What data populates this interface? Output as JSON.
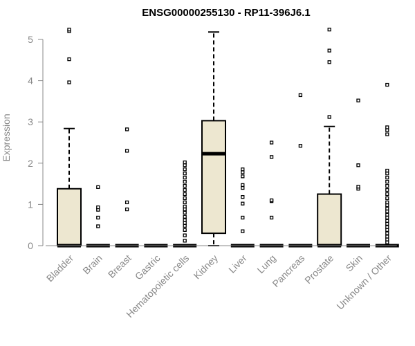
{
  "chart_data": {
    "type": "box",
    "title": "ENSG00000255130 - RP11-396J6.1",
    "xlabel": "",
    "ylabel": "Expression",
    "ylim": [
      0,
      5.3
    ],
    "yticks": [
      0,
      1,
      2,
      3,
      4,
      5
    ],
    "grid": false,
    "box_fill": "#EDE7D0",
    "categories": [
      "Bladder",
      "Brain",
      "Breast",
      "Gastric",
      "Hematopoietic cells",
      "Kidney",
      "Liver",
      "Lung",
      "Pancreas",
      "Prostate",
      "Skin",
      "Unknown / Other"
    ],
    "boxes": [
      {
        "category": "Bladder",
        "q1": 0,
        "median": 0,
        "q3": 1.38,
        "whisker_low": 0,
        "whisker_high": 2.84,
        "outliers": [
          3.96,
          4.52,
          5.2,
          5.24
        ]
      },
      {
        "category": "Brain",
        "q1": 0,
        "median": 0,
        "q3": 0,
        "whisker_low": 0,
        "whisker_high": 0,
        "outliers": [
          0.47,
          0.68,
          0.87,
          0.93,
          1.42
        ]
      },
      {
        "category": "Breast",
        "q1": 0,
        "median": 0,
        "q3": 0,
        "whisker_low": 0,
        "whisker_high": 0,
        "outliers": [
          0.88,
          1.05,
          2.3,
          2.82
        ]
      },
      {
        "category": "Gastric",
        "q1": 0,
        "median": 0,
        "q3": 0,
        "whisker_low": 0,
        "whisker_high": 0,
        "outliers": []
      },
      {
        "category": "Hematopoietic cells",
        "q1": 0,
        "median": 0,
        "q3": 0,
        "whisker_low": 0,
        "whisker_high": 0,
        "outliers": [
          0.12,
          0.25,
          0.38,
          0.48,
          0.55,
          0.62,
          0.7,
          0.8,
          0.88,
          0.95,
          1.05,
          1.15,
          1.25,
          1.35,
          1.45,
          1.55,
          1.65,
          1.75,
          1.85,
          1.95,
          2.02
        ]
      },
      {
        "category": "Kidney",
        "q1": 0.3,
        "median": 2.23,
        "q3": 3.03,
        "whisker_low": 0,
        "whisker_high": 5.18,
        "outliers": []
      },
      {
        "category": "Liver",
        "q1": 0,
        "median": 0,
        "q3": 0,
        "whisker_low": 0,
        "whisker_high": 0,
        "outliers": [
          0.35,
          0.68,
          1.02,
          1.18,
          1.4,
          1.47,
          1.68,
          1.78,
          1.85
        ]
      },
      {
        "category": "Lung",
        "q1": 0,
        "median": 0,
        "q3": 0,
        "whisker_low": 0,
        "whisker_high": 0,
        "outliers": [
          0.68,
          1.08,
          1.1,
          2.15,
          2.5
        ]
      },
      {
        "category": "Pancreas",
        "q1": 0,
        "median": 0,
        "q3": 0,
        "whisker_low": 0,
        "whisker_high": 0,
        "outliers": [
          2.42,
          3.65
        ]
      },
      {
        "category": "Prostate",
        "q1": 0,
        "median": 0,
        "q3": 1.25,
        "whisker_low": 0,
        "whisker_high": 2.89,
        "outliers": [
          3.12,
          4.45,
          4.73,
          5.24
        ]
      },
      {
        "category": "Skin",
        "q1": 0,
        "median": 0,
        "q3": 0,
        "whisker_low": 0,
        "whisker_high": 0,
        "outliers": [
          1.38,
          1.43,
          1.95,
          3.52
        ]
      },
      {
        "category": "Unknown / Other",
        "q1": 0,
        "median": 0,
        "q3": 0,
        "whisker_low": 0,
        "whisker_high": 0,
        "outliers": [
          0.08,
          0.15,
          0.22,
          0.3,
          0.38,
          0.45,
          0.53,
          0.6,
          0.68,
          0.75,
          0.83,
          0.9,
          0.98,
          1.05,
          1.15,
          1.25,
          1.35,
          1.45,
          1.55,
          1.65,
          1.75,
          1.82,
          2.7,
          2.8,
          2.87,
          3.9
        ]
      }
    ]
  }
}
